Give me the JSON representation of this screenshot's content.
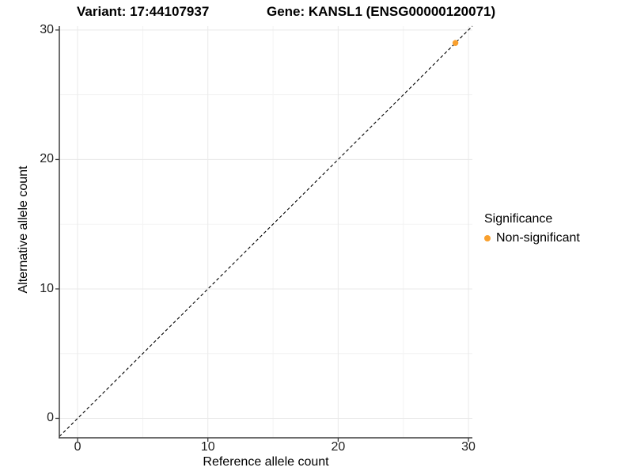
{
  "chart_data": {
    "type": "scatter",
    "titles": {
      "left": "Variant: 17:44107937",
      "right": "Gene: KANSL1 (ENSG00000120071)"
    },
    "xlabel": "Reference allele count",
    "ylabel": "Alternative allele count",
    "xlim": [
      -1.4,
      30.3
    ],
    "ylim": [
      -1.5,
      30.3
    ],
    "x_ticks": [
      0,
      10,
      20,
      30
    ],
    "y_ticks": [
      0,
      10,
      20,
      30
    ],
    "x_minor_ticks": [
      5,
      15,
      25
    ],
    "y_minor_ticks": [
      5,
      15,
      25
    ],
    "grid": true,
    "reference_line": {
      "type": "identity",
      "style": "dashed",
      "color": "#000000"
    },
    "series": [
      {
        "name": "Non-significant",
        "color": "#F9A02D",
        "points": [
          [
            29,
            29
          ]
        ]
      }
    ],
    "legend": {
      "title": "Significance",
      "position": "right",
      "items": [
        {
          "label": "Non-significant",
          "color": "#F9A02D"
        }
      ]
    },
    "colors": {
      "axis_line": "#3f3f3f",
      "major_grid": "#e9e9e9",
      "minor_grid": "#f3f3f3",
      "background": "#ffffff"
    }
  }
}
